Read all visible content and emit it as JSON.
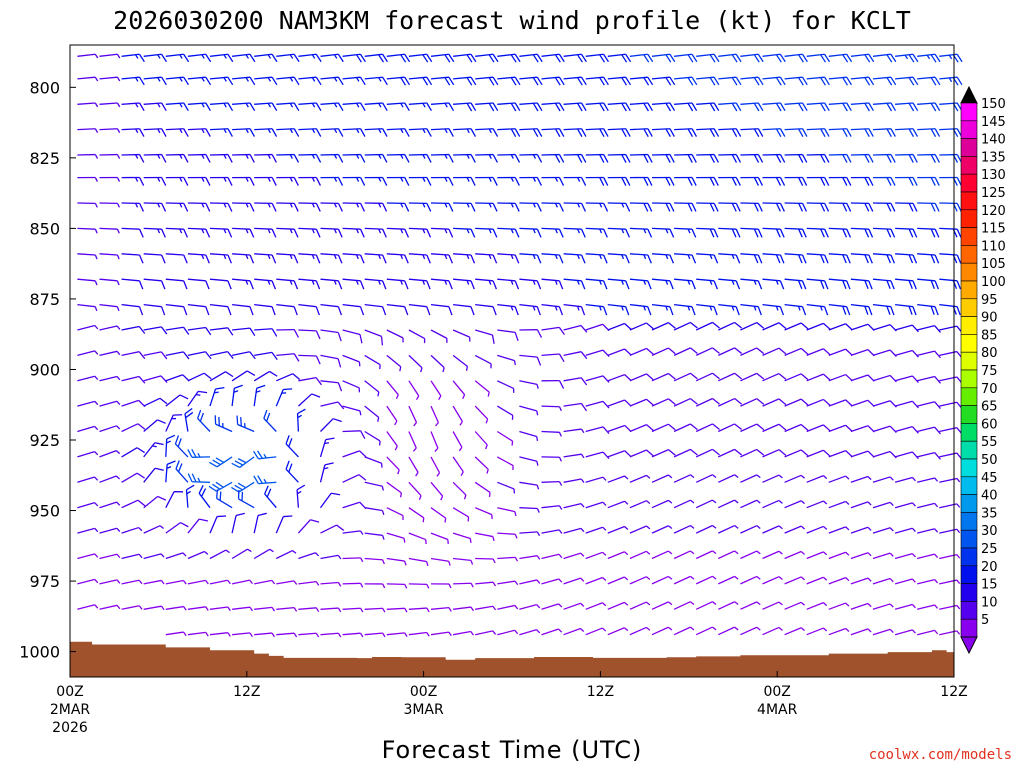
{
  "chart_data": {
    "type": "wind-barb profile",
    "title": "2026030200 NAM3KM forecast wind profile (kt) for KCLT",
    "xlabel": "Forecast Time (UTC)",
    "ylabel": "",
    "credit": "coolwx.com/models",
    "x_ticks": [
      {
        "hour": 0,
        "label": "00Z",
        "sub1": "2MAR",
        "sub2": "2026"
      },
      {
        "hour": 12,
        "label": "12Z",
        "sub1": "",
        "sub2": ""
      },
      {
        "hour": 24,
        "label": "00Z",
        "sub1": "3MAR",
        "sub2": ""
      },
      {
        "hour": 36,
        "label": "12Z",
        "sub1": "",
        "sub2": ""
      },
      {
        "hour": 48,
        "label": "00Z",
        "sub1": "4MAR",
        "sub2": ""
      },
      {
        "hour": 60,
        "label": "12Z",
        "sub1": "",
        "sub2": ""
      }
    ],
    "xlim": [
      0,
      60
    ],
    "y_ticks": [
      800,
      825,
      850,
      875,
      900,
      925,
      950,
      975,
      1000
    ],
    "ylim_hpa": [
      785,
      1009
    ],
    "colorbar": {
      "labels": [
        150,
        145,
        140,
        135,
        130,
        125,
        120,
        115,
        110,
        105,
        100,
        95,
        90,
        85,
        80,
        75,
        70,
        65,
        60,
        55,
        50,
        45,
        40,
        35,
        30,
        25,
        20,
        15,
        10,
        5
      ],
      "colors": [
        "#ff00ff",
        "#ee00dd",
        "#dd0099",
        "#ee0066",
        "#ff0033",
        "#ff1111",
        "#ff2200",
        "#ff4400",
        "#ff6600",
        "#ff8800",
        "#ffaa00",
        "#ffcc00",
        "#ffee00",
        "#ffff00",
        "#ddff00",
        "#aaff00",
        "#66ee00",
        "#22dd22",
        "#00dd66",
        "#00ddaa",
        "#00dddd",
        "#00bbee",
        "#0099ee",
        "#0077ee",
        "#0055ee",
        "#0033ee",
        "#0011ee",
        "#2200ee",
        "#5500ee",
        "#8800ee"
      ],
      "top_color": "#000000",
      "bottom_color": "#8800ee"
    },
    "terrain_color": "#a0522d",
    "surface_pressure": [
      [
        0,
        996.5
      ],
      [
        1.5,
        997.5
      ],
      [
        2.5,
        997.5
      ],
      [
        6.5,
        998.5
      ],
      [
        9.5,
        999.5
      ],
      [
        12.5,
        1000.7
      ],
      [
        13.5,
        1001.5
      ],
      [
        14.5,
        1002.2
      ],
      [
        19.5,
        1002.3
      ],
      [
        20.5,
        1001.9
      ],
      [
        22.5,
        1002.0
      ],
      [
        25.5,
        1002.9
      ],
      [
        27.5,
        1002.3
      ],
      [
        31.5,
        1001.9
      ],
      [
        35.5,
        1002.2
      ],
      [
        40.5,
        1002.0
      ],
      [
        42.5,
        1001.7
      ],
      [
        45.5,
        1001.3
      ],
      [
        51.5,
        1000.7
      ],
      [
        55.5,
        1000.2
      ],
      [
        58.5,
        999.5
      ],
      [
        59.5,
        1000.2
      ],
      [
        60,
        1000.2
      ]
    ],
    "barb_spacing_hours": 1,
    "levels_hpa": [
      789,
      797,
      806,
      815,
      824,
      832,
      841,
      850,
      859,
      868,
      877,
      886,
      895,
      904,
      913,
      922,
      931,
      940,
      949,
      958,
      967,
      976,
      985,
      994
    ],
    "wind_field_notes": "speed_kt and dir_deg per grid point are generated by model function in script (calm near surface early, 20-35 kt NE/N low-level jet around 925-950 hPa 2MAR 09-15Z, westerly 15-25 kt aloft)"
  }
}
